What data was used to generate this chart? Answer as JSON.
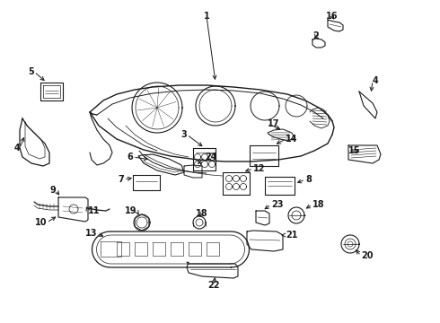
{
  "background_color": "#ffffff",
  "line_color": "#1a1a1a",
  "fig_width": 4.9,
  "fig_height": 3.6,
  "dpi": 100
}
